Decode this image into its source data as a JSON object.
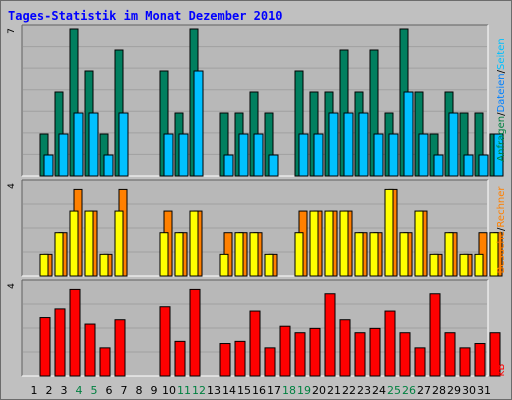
{
  "title": "Tages-Statistik im Monat Dezember 2010",
  "colors": {
    "background": "#c0c0c0",
    "panel": "#b8b8b8",
    "grid": "#a0a0a0",
    "title": "#0000ff",
    "weekday": "#000000",
    "weekend": "#008040",
    "anfragen": "#007f5f",
    "dateien": "#00c0ff",
    "seiten": "#00a0c0",
    "besuche": "#ff8000",
    "rechner": "#ffff00",
    "kb": "#ff0000",
    "kb_label": "#ff0000"
  },
  "right_labels": {
    "top": [
      {
        "text": "Anfragen",
        "color": "#008040"
      },
      {
        "text": "/",
        "color": "#000000"
      },
      {
        "text": "Dateien",
        "color": "#0080ff"
      },
      {
        "text": "/",
        "color": "#000000"
      },
      {
        "text": "Seiten",
        "color": "#00c0ff"
      }
    ],
    "middle": [
      {
        "text": "Besuche",
        "color": "#ff8000"
      },
      {
        "text": "/",
        "color": "#000000"
      },
      {
        "text": "Rechner",
        "color": "#ff8000"
      }
    ],
    "bottom": [
      {
        "text": "kB",
        "color": "#ff0000"
      }
    ]
  },
  "chart_data": [
    {
      "type": "bar",
      "panel": "top",
      "ytick_label": "7",
      "ylim": [
        0,
        7
      ],
      "categories": [
        "1",
        "2",
        "3",
        "4",
        "5",
        "6",
        "7",
        "8",
        "9",
        "10",
        "11",
        "12",
        "13",
        "14",
        "15",
        "16",
        "17",
        "18",
        "19",
        "20",
        "21",
        "22",
        "23",
        "24",
        "25",
        "26",
        "27",
        "28",
        "29",
        "30",
        "31"
      ],
      "weekend_days": [
        4,
        5,
        11,
        12,
        18,
        19,
        25,
        26
      ],
      "series": [
        {
          "name": "Anfragen",
          "values": [
            2,
            4,
            7,
            5,
            2,
            6,
            0,
            0,
            5,
            3,
            7,
            0,
            3,
            3,
            4,
            3,
            0,
            5,
            4,
            4,
            6,
            4,
            6,
            3,
            7,
            4,
            2,
            4,
            3,
            3,
            2
          ]
        },
        {
          "name": "Dateien",
          "values": [
            1,
            2,
            3,
            3,
            1,
            3,
            0,
            0,
            2,
            2,
            5,
            0,
            1,
            2,
            2,
            1,
            0,
            2,
            2,
            3,
            3,
            3,
            2,
            2,
            4,
            2,
            1,
            3,
            1,
            1,
            2
          ]
        },
        {
          "name": "Seiten",
          "values": [
            1,
            2,
            3,
            3,
            1,
            3,
            0,
            0,
            2,
            2,
            5,
            0,
            1,
            2,
            2,
            1,
            0,
            2,
            2,
            3,
            3,
            3,
            2,
            2,
            4,
            2,
            1,
            3,
            1,
            1,
            2
          ]
        }
      ]
    },
    {
      "type": "bar",
      "panel": "middle",
      "ytick_label": "4",
      "ylim": [
        0,
        4.25
      ],
      "categories": [
        "1",
        "2",
        "3",
        "4",
        "5",
        "6",
        "7",
        "8",
        "9",
        "10",
        "11",
        "12",
        "13",
        "14",
        "15",
        "16",
        "17",
        "18",
        "19",
        "20",
        "21",
        "22",
        "23",
        "24",
        "25",
        "26",
        "27",
        "28",
        "29",
        "30",
        "31"
      ],
      "series": [
        {
          "name": "Besuche",
          "values": [
            1,
            2,
            4,
            3,
            1,
            4,
            0,
            0,
            3,
            2,
            3,
            0,
            2,
            2,
            2,
            1,
            0,
            3,
            3,
            3,
            3,
            2,
            2,
            4,
            2,
            3,
            1,
            2,
            1,
            2,
            2
          ]
        },
        {
          "name": "Rechner",
          "values": [
            1,
            2,
            3,
            3,
            1,
            3,
            0,
            0,
            2,
            2,
            3,
            0,
            1,
            2,
            2,
            1,
            0,
            2,
            3,
            3,
            3,
            2,
            2,
            4,
            2,
            3,
            1,
            2,
            1,
            1,
            2
          ]
        }
      ]
    },
    {
      "type": "bar",
      "panel": "bottom",
      "ytick_label": "4",
      "ylim": [
        0,
        4.25
      ],
      "categories": [
        "1",
        "2",
        "3",
        "4",
        "5",
        "6",
        "7",
        "8",
        "9",
        "10",
        "11",
        "12",
        "13",
        "14",
        "15",
        "16",
        "17",
        "18",
        "19",
        "20",
        "21",
        "22",
        "23",
        "24",
        "25",
        "26",
        "27",
        "28",
        "29",
        "30",
        "31"
      ],
      "series": [
        {
          "name": "kB",
          "values": [
            2.7,
            3.1,
            4.0,
            2.4,
            1.3,
            2.6,
            0,
            0,
            3.2,
            1.6,
            4.0,
            0,
            1.5,
            1.6,
            3.0,
            1.3,
            2.3,
            2.0,
            2.2,
            3.8,
            2.6,
            2.0,
            2.2,
            3.0,
            2.0,
            1.3,
            3.8,
            2.0,
            1.3,
            1.5,
            2.0
          ]
        }
      ]
    }
  ]
}
